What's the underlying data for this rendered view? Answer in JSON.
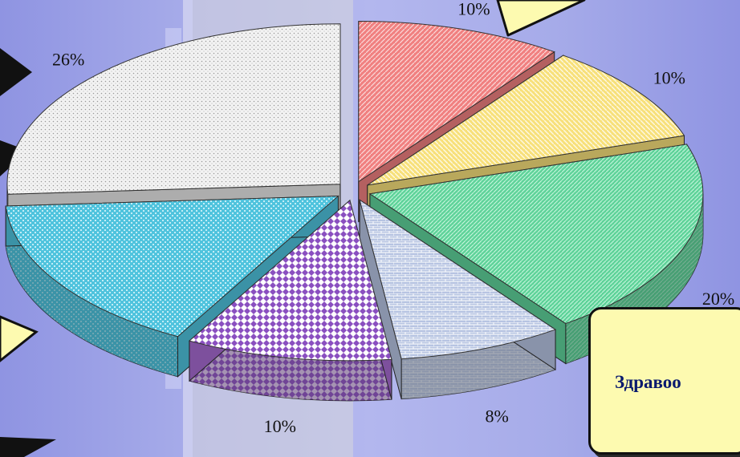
{
  "chart_data": {
    "type": "pie",
    "title": "",
    "unit": "%",
    "slices": [
      {
        "value": 10,
        "label": "10%",
        "color": "#f08080"
      },
      {
        "value": 10,
        "label": "10%",
        "color": "#f7e07a"
      },
      {
        "value": 20,
        "label": "20%",
        "color": "#5fd39a"
      },
      {
        "value": 8,
        "label": "8%",
        "color": "#b7c4e2"
      },
      {
        "value": 10,
        "label": "10%",
        "color": "#a66bd1"
      },
      {
        "value": 16,
        "label": "",
        "color": "#4fc3dd"
      },
      {
        "value": 26,
        "label": "26%",
        "color": "#e6e6e6"
      }
    ],
    "legend": "none",
    "exploded": true,
    "three_d": true
  },
  "callout": {
    "text": "Здравоо"
  }
}
